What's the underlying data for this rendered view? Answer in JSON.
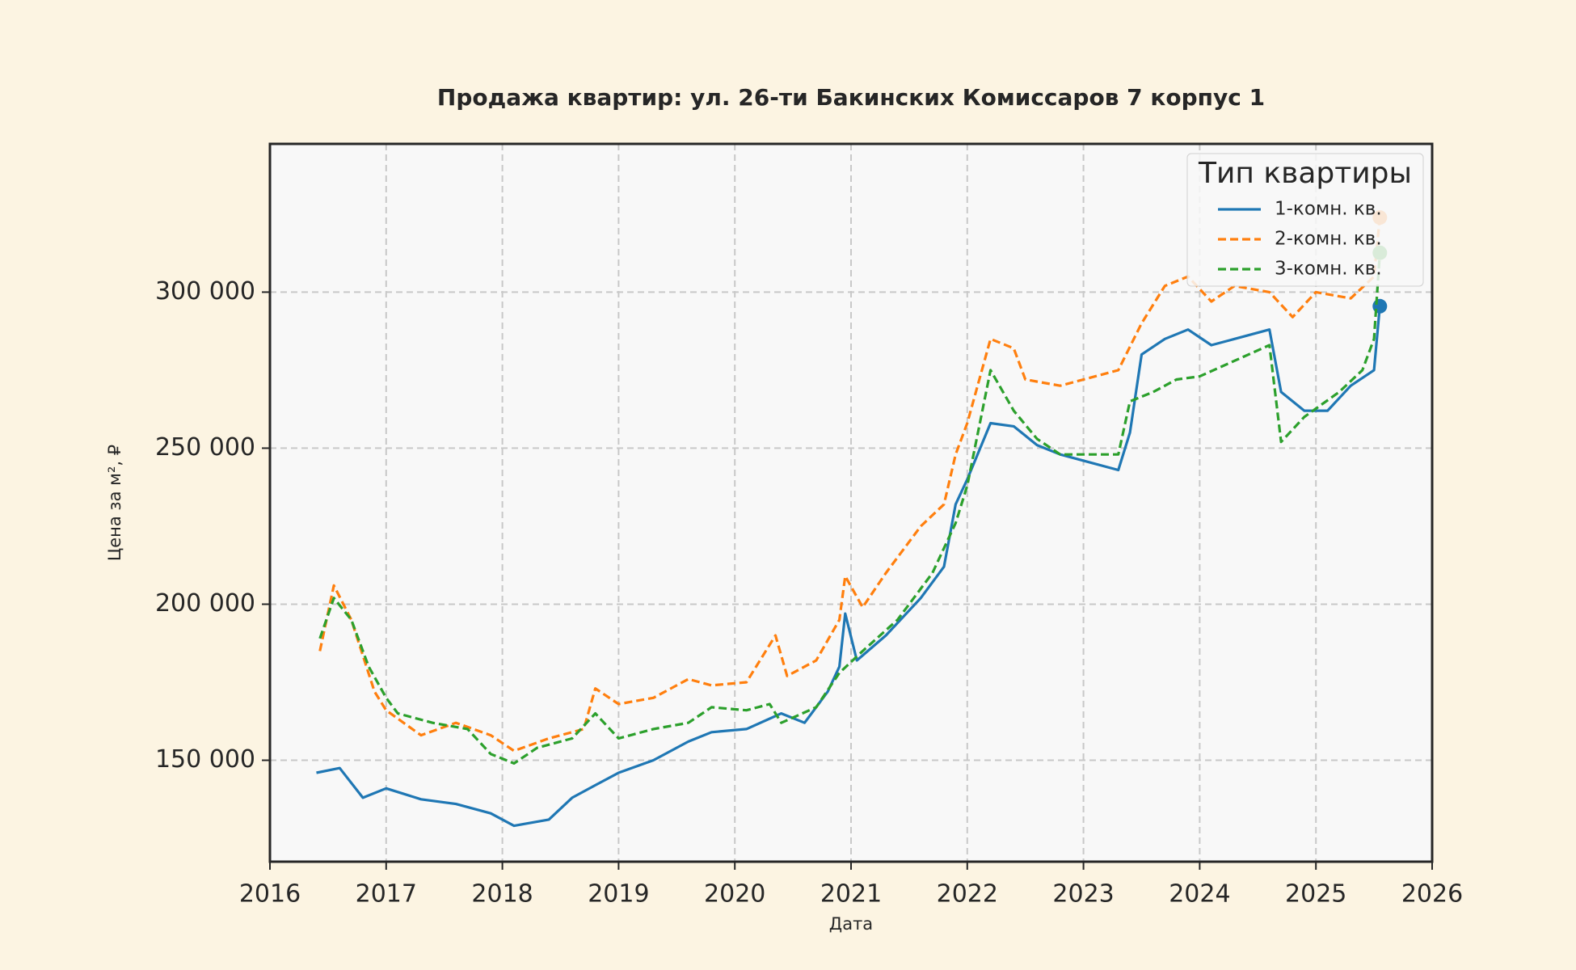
{
  "chart_data": {
    "type": "line",
    "title": "Продажа квартир: ул. 26-ти Бакинских Комиссаров 7 корпус 1",
    "x_label": "Дата",
    "y_label": "Цена за м², ₽",
    "legend_title": "Тип квартиры",
    "legend": "upper right",
    "grid": true,
    "xlim": [
      2016,
      2026
    ],
    "xticks": [
      2016,
      2017,
      2018,
      2019,
      2020,
      2021,
      2022,
      2023,
      2024,
      2025,
      2026
    ],
    "ylim": [
      117500,
      347500
    ],
    "yticks": [
      {
        "value": 150000,
        "label": "150 000"
      },
      {
        "value": 200000,
        "label": "200 000"
      },
      {
        "value": 250000,
        "label": "250 000"
      },
      {
        "value": 300000,
        "label": "300 000"
      }
    ],
    "series": [
      {
        "name": "1-комн. кв.",
        "color": "#1f77b4",
        "dash": "solid",
        "x": [
          2016.4,
          2016.6,
          2016.8,
          2017.0,
          2017.3,
          2017.6,
          2017.9,
          2018.1,
          2018.4,
          2018.6,
          2018.8,
          2019.0,
          2019.3,
          2019.6,
          2019.8,
          2020.1,
          2020.4,
          2020.6,
          2020.8,
          2020.9,
          2020.95,
          2021.05,
          2021.3,
          2021.6,
          2021.8,
          2021.9,
          2022.0,
          2022.2,
          2022.4,
          2022.6,
          2022.8,
          2023.0,
          2023.3,
          2023.4,
          2023.5,
          2023.7,
          2023.9,
          2024.1,
          2024.3,
          2024.6,
          2024.7,
          2024.9,
          2025.1,
          2025.3,
          2025.5,
          2025.55
        ],
        "values": [
          146000,
          147500,
          138000,
          141000,
          137500,
          136000,
          133000,
          129000,
          131000,
          138000,
          142000,
          146000,
          150000,
          156000,
          159000,
          160000,
          165000,
          162000,
          172000,
          180000,
          197000,
          182000,
          190000,
          202000,
          212000,
          232000,
          240000,
          258000,
          257000,
          251000,
          248000,
          246000,
          243000,
          255000,
          280000,
          285000,
          288000,
          283000,
          285000,
          288000,
          268000,
          262000,
          262000,
          270000,
          275000,
          295500
        ]
      },
      {
        "name": "2-комн. кв.",
        "color": "#ff7f0e",
        "dash": "dashed",
        "x": [
          2016.43,
          2016.55,
          2016.7,
          2016.9,
          2017.0,
          2017.3,
          2017.6,
          2017.9,
          2018.1,
          2018.4,
          2018.7,
          2018.8,
          2019.0,
          2019.3,
          2019.6,
          2019.8,
          2020.1,
          2020.35,
          2020.45,
          2020.7,
          2020.9,
          2020.95,
          2021.1,
          2021.3,
          2021.6,
          2021.8,
          2021.9,
          2022.0,
          2022.2,
          2022.4,
          2022.5,
          2022.8,
          2023.0,
          2023.3,
          2023.5,
          2023.7,
          2023.9,
          2024.1,
          2024.3,
          2024.6,
          2024.8,
          2025.0,
          2025.3,
          2025.5,
          2025.55
        ],
        "values": [
          185000,
          206000,
          195000,
          172000,
          166000,
          158000,
          162000,
          158000,
          153000,
          157000,
          160000,
          173000,
          168000,
          170000,
          176000,
          174000,
          175000,
          190000,
          177000,
          182000,
          195000,
          209000,
          199000,
          210000,
          225000,
          232000,
          248000,
          258000,
          285000,
          282000,
          272000,
          270000,
          272000,
          275000,
          290000,
          302000,
          305000,
          297000,
          302000,
          300000,
          292000,
          300000,
          298000,
          305000,
          323900
        ]
      },
      {
        "name": "3-комн. кв.",
        "color": "#2ca02c",
        "dash": "dashed",
        "x": [
          2016.43,
          2016.55,
          2016.7,
          2016.85,
          2017.0,
          2017.1,
          2017.4,
          2017.7,
          2017.9,
          2018.1,
          2018.3,
          2018.6,
          2018.8,
          2019.0,
          2019.3,
          2019.6,
          2019.8,
          2020.1,
          2020.3,
          2020.4,
          2020.7,
          2020.9,
          2021.1,
          2021.4,
          2021.7,
          2021.9,
          2022.0,
          2022.2,
          2022.4,
          2022.6,
          2022.8,
          2023.0,
          2023.3,
          2023.4,
          2023.6,
          2023.8,
          2024.0,
          2024.3,
          2024.6,
          2024.7,
          2024.9,
          2025.2,
          2025.4,
          2025.5,
          2025.55
        ],
        "values": [
          189000,
          202000,
          195000,
          180000,
          170000,
          165000,
          162000,
          160000,
          152000,
          149000,
          154000,
          157000,
          165000,
          157000,
          160000,
          162000,
          167000,
          166000,
          168000,
          162000,
          167000,
          178000,
          185000,
          195000,
          210000,
          226000,
          238000,
          275000,
          262000,
          253000,
          248000,
          248000,
          248000,
          265000,
          268000,
          272000,
          273000,
          278000,
          283000,
          252000,
          260000,
          268000,
          275000,
          285000,
          312600
        ]
      }
    ]
  }
}
